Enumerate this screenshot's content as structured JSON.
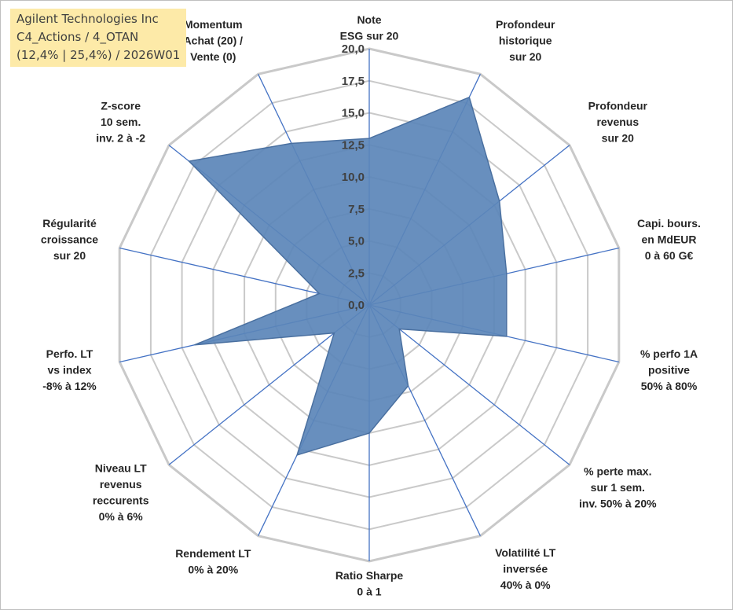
{
  "title": {
    "line1": "Agilent Technologies Inc",
    "line2": "C4_Actions / 4_OTAN",
    "line3": "(12,4% | 25,4%) / 2026W01"
  },
  "colors": {
    "grid": "#c9c9c9",
    "spoke": "#4472c4",
    "fill": "#5b86b8",
    "stroke": "#4a70a0"
  },
  "chart_data": {
    "type": "radar",
    "rmin": 0,
    "rmax": 20,
    "ticks": [
      "0,0",
      "2,5",
      "5,0",
      "7,5",
      "10,0",
      "12,5",
      "15,0",
      "17,5",
      "20,0"
    ],
    "tick_values": [
      0,
      2.5,
      5,
      7.5,
      10,
      12.5,
      15,
      17.5,
      20
    ],
    "axes": [
      {
        "lines": [
          "Note",
          "ESG sur 20"
        ],
        "value": 13
      },
      {
        "lines": [
          "Profondeur",
          "historique",
          "sur 20"
        ],
        "value": 18
      },
      {
        "lines": [
          "Profondeur",
          "revenus",
          "sur 20"
        ],
        "value": 13
      },
      {
        "lines": [
          "Capi. bours.",
          "en MdEUR",
          "0 à 60 G€"
        ],
        "value": 11
      },
      {
        "lines": [
          "% perfo 1A",
          "positive",
          "50% à 80%"
        ],
        "value": 11
      },
      {
        "lines": [
          "% perte max.",
          "sur 1 sem.",
          "inv. 50% à 20%"
        ],
        "value": 3
      },
      {
        "lines": [
          "Volatilité LT",
          "inversée",
          "40% à 0%"
        ],
        "value": 7
      },
      {
        "lines": [
          "Ratio Sharpe",
          "0 à 1"
        ],
        "value": 10
      },
      {
        "lines": [
          "Rendement LT",
          "0% à 20%"
        ],
        "value": 13
      },
      {
        "lines": [
          "Niveau LT",
          "revenus",
          "reccurents",
          "0% à 6%"
        ],
        "value": 3.5
      },
      {
        "lines": [
          "Perfo. LT",
          "vs index",
          "-8% à 12%"
        ],
        "value": 14
      },
      {
        "lines": [
          "Régularité",
          "croissance",
          "sur 20"
        ],
        "value": 4
      },
      {
        "lines": [
          "Z-score",
          "10 sem.",
          "inv. 2 à -2"
        ],
        "value": 18
      },
      {
        "lines": [
          "Momentum",
          "Achat (20) /",
          "Vente (0)"
        ],
        "value": 14
      }
    ]
  }
}
